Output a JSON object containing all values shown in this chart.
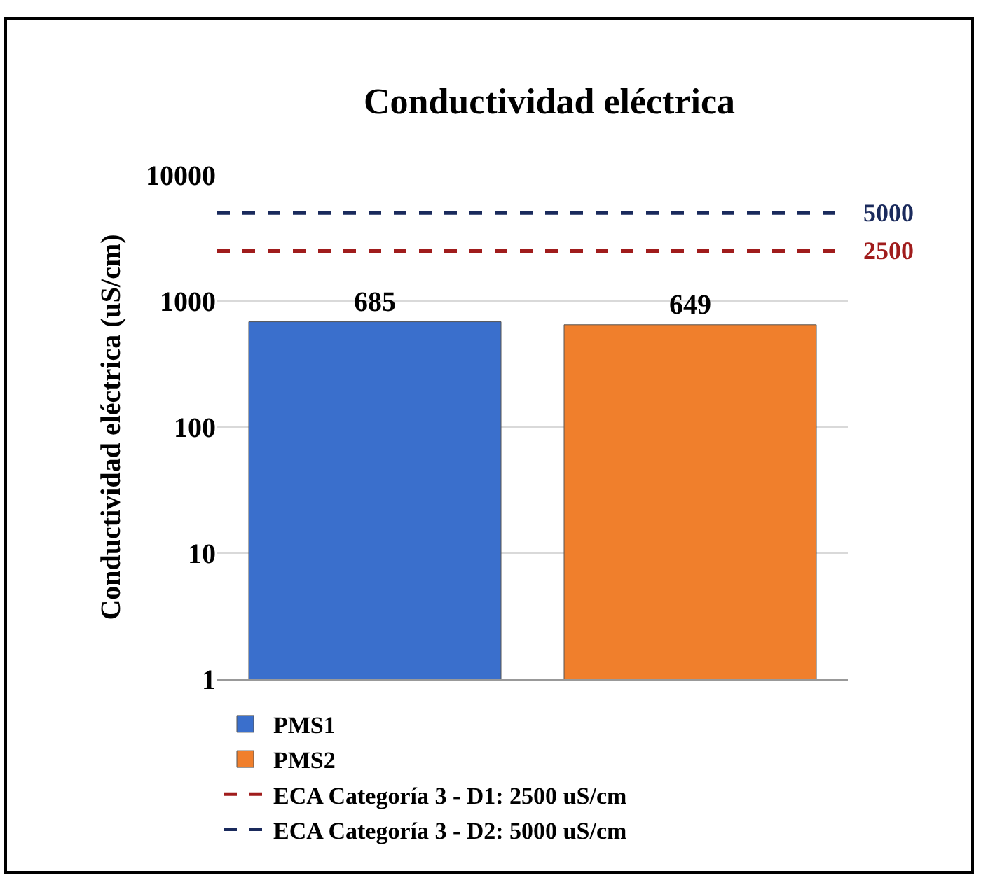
{
  "chart_data": {
    "type": "bar",
    "title": "Conductividad eléctrica",
    "ylabel": "Conductividad eléctrica (uS/cm)",
    "categories": [
      null,
      null
    ],
    "series": [
      {
        "name": "PMS1",
        "color": "#3a6fcc",
        "values": [
          685,
          null
        ]
      },
      {
        "name": "PMS2",
        "color": "#f07f2c",
        "values": [
          null,
          649
        ]
      }
    ],
    "data_labels": true,
    "log": true,
    "ylim": [
      1,
      10000
    ],
    "yticks": [
      1,
      10,
      100,
      1000,
      10000
    ],
    "grid": "y",
    "legend": "bottom",
    "ref_lines": [
      {
        "axis": "y",
        "value": 2500,
        "label": "ECA Categoría 3 - D1: 2500 uS/cm",
        "color": "#a01c1c",
        "line_style": "dashed"
      },
      {
        "axis": "y",
        "value": 5000,
        "label": "ECA Categoría 3 - D2: 5000 uS/cm",
        "color": "#1a2a5c",
        "line_style": "dashed"
      }
    ],
    "annotations": [
      "2500",
      "5000"
    ]
  }
}
